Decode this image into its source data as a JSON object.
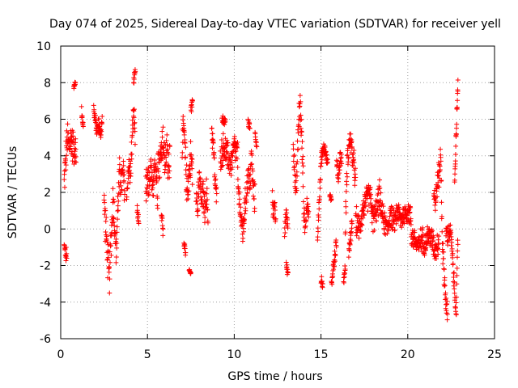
{
  "chart_data": {
    "type": "scatter",
    "title": "Day 074 of 2025, Sidereal Day-to-day VTEC variation (SDTVAR) for receiver yell",
    "xlabel": "GPS time / hours",
    "ylabel": "SDTVAR / TECUs",
    "xlim": [
      0,
      25
    ],
    "ylim": [
      -6,
      10
    ],
    "xticks": [
      0,
      5,
      10,
      15,
      20,
      25
    ],
    "yticks": [
      -6,
      -4,
      -2,
      0,
      2,
      4,
      6,
      8,
      10
    ],
    "grid": true,
    "marker": "plus",
    "color": "#ff0000",
    "series": [
      {
        "name": "SDTVAR",
        "segments": [
          {
            "x": [
              0.2,
              0.3,
              0.4,
              0.5,
              0.6,
              0.7,
              0.8,
              0.9
            ],
            "center": [
              2.5,
              4.0,
              5.0,
              4.5,
              5.0,
              4.5,
              4.5,
              4.0
            ],
            "spread": 1.2
          },
          {
            "x": [
              0.2,
              0.35
            ],
            "center": [
              -1.0,
              -1.6
            ],
            "spread": 0.6
          },
          {
            "x": [
              0.75,
              0.85
            ],
            "center": [
              7.8,
              8.0
            ],
            "spread": 0.2
          },
          {
            "x": [
              1.2,
              1.3
            ],
            "center": [
              6.5,
              5.6
            ],
            "spread": 0.4
          },
          {
            "x": [
              1.9,
              2.0,
              2.1,
              2.2,
              2.3,
              2.4
            ],
            "center": [
              6.6,
              5.8,
              5.4,
              5.8,
              5.0,
              6.3
            ],
            "spread": 0.5
          },
          {
            "x": [
              2.5,
              2.6,
              2.7,
              2.8,
              2.9,
              3.0
            ],
            "center": [
              1.5,
              0.0,
              -1.5,
              -2.8,
              -0.5,
              1.0
            ],
            "spread": 1.3
          },
          {
            "x": [
              3.0,
              3.1,
              3.2,
              3.3,
              3.4,
              3.5,
              3.6,
              3.7
            ],
            "center": [
              2.0,
              0.5,
              -1.5,
              1.5,
              3.0,
              2.5,
              3.0,
              2.0
            ],
            "spread": 1.3
          },
          {
            "x": [
              3.8,
              3.9,
              4.0,
              4.1,
              4.2,
              4.3
            ],
            "center": [
              1.5,
              3.5,
              3.0,
              4.5,
              6.5,
              5.0
            ],
            "spread": 1.0
          },
          {
            "x": [
              4.2,
              4.3
            ],
            "center": [
              8.0,
              8.6
            ],
            "spread": 0.3
          },
          {
            "x": [
              4.4,
              4.5
            ],
            "center": [
              1.0,
              0.3
            ],
            "spread": 0.5
          },
          {
            "x": [
              4.9,
              5.0,
              5.1,
              5.2,
              5.3,
              5.4,
              5.5,
              5.6
            ],
            "center": [
              2.0,
              3.0,
              2.0,
              3.5,
              1.5,
              4.0,
              3.0,
              2.0
            ],
            "spread": 1.2
          },
          {
            "x": [
              5.6,
              5.7,
              5.8,
              5.9,
              6.0,
              6.1,
              6.2,
              6.3
            ],
            "center": [
              4.0,
              3.5,
              4.5,
              5.0,
              3.5,
              4.5,
              3.0,
              4.5
            ],
            "spread": 1.3
          },
          {
            "x": [
              5.8,
              5.9
            ],
            "center": [
              1.0,
              0.0
            ],
            "spread": 0.6
          },
          {
            "x": [
              7.0,
              7.1,
              7.2,
              7.3,
              7.4,
              7.5,
              7.6
            ],
            "center": [
              4.5,
              5.5,
              3.5,
              2.0,
              3.0,
              4.0,
              3.0
            ],
            "spread": 1.2
          },
          {
            "x": [
              7.1,
              7.2
            ],
            "center": [
              -0.8,
              -1.3
            ],
            "spread": 0.4
          },
          {
            "x": [
              7.5,
              7.6
            ],
            "center": [
              6.5,
              7.0
            ],
            "spread": 0.3
          },
          {
            "x": [
              7.4,
              7.5
            ],
            "center": [
              -2.2,
              -2.4
            ],
            "spread": 0.1
          },
          {
            "x": [
              7.8,
              7.9,
              8.0,
              8.1,
              8.2,
              8.3,
              8.4,
              8.5
            ],
            "center": [
              2.0,
              1.0,
              3.0,
              1.5,
              2.0,
              1.0,
              2.0,
              0.5
            ],
            "spread": 1.0
          },
          {
            "x": [
              8.7,
              8.8,
              8.9,
              9.0
            ],
            "center": [
              5.5,
              4.5,
              2.5,
              1.5
            ],
            "spread": 0.8
          },
          {
            "x": [
              9.2,
              9.4,
              9.6,
              9.8,
              10.0,
              10.2
            ],
            "center": [
              4.0,
              4.5,
              4.0,
              3.5,
              4.5,
              4.0
            ],
            "spread": 1.0
          },
          {
            "x": [
              9.3,
              9.5
            ],
            "center": [
              6.0,
              5.8
            ],
            "spread": 0.3
          },
          {
            "x": [
              10.2,
              10.3,
              10.4,
              10.5,
              10.6,
              10.7,
              10.8,
              10.9,
              11.0,
              11.1,
              11.2
            ],
            "center": [
              2.5,
              1.5,
              0.5,
              -0.2,
              1.0,
              2.0,
              3.0,
              2.5,
              4.0,
              2.0,
              1.5
            ],
            "spread": 1.0
          },
          {
            "x": [
              10.8,
              10.9
            ],
            "center": [
              6.0,
              5.5
            ],
            "spread": 0.4
          },
          {
            "x": [
              11.2,
              11.3
            ],
            "center": [
              5.2,
              4.5
            ],
            "spread": 0.3
          },
          {
            "x": [
              12.2,
              12.4
            ],
            "center": [
              1.5,
              0.5
            ],
            "spread": 0.8
          },
          {
            "x": [
              12.9,
              13.0,
              13.1
            ],
            "center": [
              -0.3,
              1.0,
              0.0
            ],
            "spread": 0.6
          },
          {
            "x": [
              13.0,
              13.1
            ],
            "center": [
              -2.0,
              -2.4
            ],
            "spread": 0.3
          },
          {
            "x": [
              13.4,
              13.5,
              13.6,
              13.7,
              13.8,
              13.9,
              14.0
            ],
            "center": [
              4.5,
              3.0,
              2.5,
              5.5,
              7.0,
              4.5,
              2.0
            ],
            "spread": 1.2
          },
          {
            "x": [
              14.0,
              14.1,
              14.2,
              14.3
            ],
            "center": [
              1.0,
              0.0,
              1.5,
              0.5
            ],
            "spread": 0.6
          },
          {
            "x": [
              14.8,
              15.0,
              15.2,
              15.4
            ],
            "center": [
              -0.5,
              3.8,
              4.5,
              3.5
            ],
            "spread": 0.5
          },
          {
            "x": [
              15.0,
              15.1
            ],
            "center": [
              -2.8,
              -3.0
            ],
            "spread": 0.3
          },
          {
            "x": [
              15.5,
              15.6
            ],
            "center": [
              1.8,
              1.6
            ],
            "spread": 0.2
          },
          {
            "x": [
              15.6,
              15.7,
              15.8,
              15.9
            ],
            "center": [
              -3.0,
              -2.0,
              -1.5,
              -0.5
            ],
            "spread": 0.6
          },
          {
            "x": [
              15.9,
              16.0,
              16.1,
              16.2
            ],
            "center": [
              3.5,
              2.8,
              4.0,
              3.6
            ],
            "spread": 0.6
          },
          {
            "x": [
              16.3,
              16.4
            ],
            "center": [
              -2.8,
              -2.2
            ],
            "spread": 0.4
          },
          {
            "x": [
              16.4,
              16.5,
              16.6,
              16.7,
              16.8,
              16.9,
              17.0
            ],
            "center": [
              0.0,
              3.5,
              4.5,
              5.0,
              4.0,
              3.5,
              2.5
            ],
            "spread": 0.9
          },
          {
            "x": [
              16.6,
              16.7,
              16.8
            ],
            "center": [
              -1.5,
              -0.5,
              0.5
            ],
            "spread": 0.5
          },
          {
            "x": [
              17.0,
              17.2,
              17.4,
              17.6,
              17.8,
              18.0,
              18.2,
              18.4
            ],
            "center": [
              0.5,
              0.0,
              1.0,
              1.5,
              2.0,
              0.5,
              1.0,
              2.0
            ],
            "spread": 0.9
          },
          {
            "x": [
              18.4,
              18.6,
              18.8,
              19.0,
              19.2,
              19.4,
              19.6,
              19.8,
              20.0,
              20.2
            ],
            "center": [
              1.5,
              0.5,
              0.0,
              0.8,
              0.3,
              1.0,
              0.5,
              0.8,
              1.0,
              0.5
            ],
            "spread": 0.8
          },
          {
            "x": [
              20.2,
              20.4,
              20.6,
              20.8,
              21.0,
              21.2,
              21.4,
              21.6,
              21.8
            ],
            "center": [
              -0.3,
              -0.6,
              -1.0,
              -0.5,
              -0.8,
              -0.3,
              -0.6,
              -1.2,
              -0.5
            ],
            "spread": 0.8
          },
          {
            "x": [
              21.5,
              21.6,
              21.7,
              21.8,
              21.9,
              22.0,
              22.1,
              22.2,
              22.3
            ],
            "center": [
              2.0,
              1.5,
              2.5,
              3.0,
              4.0,
              -1.0,
              -2.5,
              -4.0,
              -5.0
            ],
            "spread": 0.9
          },
          {
            "x": [
              22.2,
              22.3,
              22.4,
              22.5,
              22.6,
              22.7,
              22.8,
              22.9
            ],
            "center": [
              0.0,
              -0.5,
              0.0,
              -0.5,
              -2.0,
              -3.5,
              -4.5,
              0.0
            ],
            "spread": 0.7
          },
          {
            "x": [
              22.7,
              22.75,
              22.8,
              22.85,
              22.9
            ],
            "center": [
              2.5,
              4.0,
              5.5,
              7.0,
              8.0
            ],
            "spread": 0.5
          }
        ]
      }
    ]
  }
}
